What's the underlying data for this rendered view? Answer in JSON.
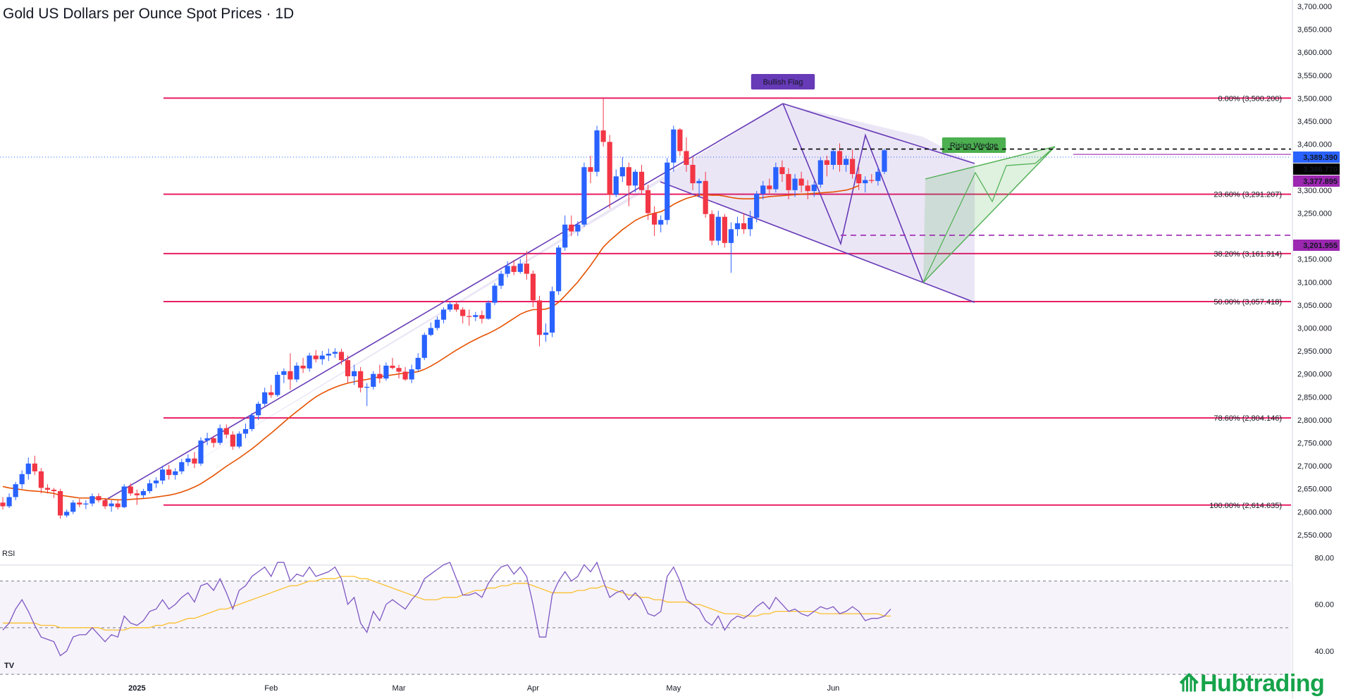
{
  "chart_data": {
    "type": "candlestick",
    "title": "Gold US Dollars per Ounce Spot Prices · 1D",
    "price_axis": {
      "ylim": [
        2510,
        3700
      ],
      "ticks": [
        {
          "v": 3700,
          "label": "3,700.000"
        },
        {
          "v": 3650,
          "label": "3,650.000"
        },
        {
          "v": 3600,
          "label": "3,600.000"
        },
        {
          "v": 3550,
          "label": "3,550.000"
        },
        {
          "v": 3500,
          "label": "3,500.000"
        },
        {
          "v": 3450,
          "label": "3,450.000"
        },
        {
          "v": 3400,
          "label": "3,400.000"
        },
        {
          "v": 3300,
          "label": "3,300.000"
        },
        {
          "v": 3250,
          "label": "3,250.000"
        },
        {
          "v": 3150,
          "label": "3,150.000"
        },
        {
          "v": 3100,
          "label": "3,100.000"
        },
        {
          "v": 3050,
          "label": "3,050.000"
        },
        {
          "v": 3000,
          "label": "3,000.000"
        },
        {
          "v": 2950,
          "label": "2,950.000"
        },
        {
          "v": 2900,
          "label": "2,900.000"
        },
        {
          "v": 2850,
          "label": "2,850.000"
        },
        {
          "v": 2800,
          "label": "2,800.000"
        },
        {
          "v": 2750,
          "label": "2,750.000"
        },
        {
          "v": 2700,
          "label": "2,700.000"
        },
        {
          "v": 2650,
          "label": "2,650.000"
        },
        {
          "v": 2600,
          "label": "2,600.000"
        },
        {
          "v": 2550,
          "label": "2,550.000"
        }
      ],
      "price_labels": [
        {
          "v": 3389.39,
          "label": "3,389.390",
          "color": "#2962ff"
        },
        {
          "v": 3386.77,
          "label": "3,386.770",
          "color": "#000000"
        },
        {
          "v": 3377.895,
          "label": "3,377.895",
          "color": "#9c27b0"
        },
        {
          "v": 3201.955,
          "label": "3,201.955",
          "color": "#9c27b0"
        }
      ]
    },
    "time_axis": [
      {
        "bar": 21,
        "label": "2025"
      },
      {
        "bar": 42,
        "label": "Feb"
      },
      {
        "bar": 62,
        "label": "Mar"
      },
      {
        "bar": 83,
        "label": "Apr"
      },
      {
        "bar": 105,
        "label": "May"
      },
      {
        "bar": 130,
        "label": "Jun"
      }
    ],
    "candles": [
      [
        2620,
        2632,
        2605,
        2612
      ],
      [
        2612,
        2640,
        2608,
        2632
      ],
      [
        2632,
        2665,
        2625,
        2660
      ],
      [
        2660,
        2690,
        2650,
        2682
      ],
      [
        2682,
        2718,
        2670,
        2705
      ],
      [
        2705,
        2722,
        2680,
        2688
      ],
      [
        2688,
        2695,
        2640,
        2652
      ],
      [
        2652,
        2660,
        2640,
        2648
      ],
      [
        2648,
        2652,
        2630,
        2645
      ],
      [
        2645,
        2650,
        2585,
        2592
      ],
      [
        2592,
        2605,
        2588,
        2600
      ],
      [
        2600,
        2625,
        2595,
        2620
      ],
      [
        2620,
        2628,
        2610,
        2616
      ],
      [
        2616,
        2625,
        2606,
        2618
      ],
      [
        2618,
        2640,
        2612,
        2634
      ],
      [
        2634,
        2640,
        2620,
        2625
      ],
      [
        2625,
        2630,
        2606,
        2612
      ],
      [
        2612,
        2625,
        2600,
        2618
      ],
      [
        2618,
        2625,
        2605,
        2610
      ],
      [
        2610,
        2660,
        2608,
        2655
      ],
      [
        2655,
        2662,
        2635,
        2640
      ],
      [
        2640,
        2648,
        2615,
        2636
      ],
      [
        2636,
        2650,
        2630,
        2645
      ],
      [
        2645,
        2670,
        2640,
        2662
      ],
      [
        2662,
        2675,
        2652,
        2668
      ],
      [
        2668,
        2700,
        2660,
        2692
      ],
      [
        2692,
        2702,
        2670,
        2680
      ],
      [
        2680,
        2695,
        2670,
        2688
      ],
      [
        2688,
        2715,
        2682,
        2708
      ],
      [
        2708,
        2725,
        2700,
        2716
      ],
      [
        2716,
        2730,
        2695,
        2705
      ],
      [
        2705,
        2762,
        2700,
        2755
      ],
      [
        2755,
        2772,
        2745,
        2760
      ],
      [
        2760,
        2765,
        2740,
        2750
      ],
      [
        2750,
        2790,
        2745,
        2782
      ],
      [
        2782,
        2790,
        2760,
        2768
      ],
      [
        2768,
        2775,
        2735,
        2742
      ],
      [
        2742,
        2775,
        2738,
        2770
      ],
      [
        2770,
        2792,
        2760,
        2780
      ],
      [
        2780,
        2815,
        2775,
        2810
      ],
      [
        2810,
        2840,
        2800,
        2835
      ],
      [
        2835,
        2870,
        2830,
        2860
      ],
      [
        2860,
        2876,
        2848,
        2854
      ],
      [
        2854,
        2905,
        2850,
        2898
      ],
      [
        2898,
        2912,
        2880,
        2906
      ],
      [
        2906,
        2945,
        2866,
        2888
      ],
      [
        2888,
        2925,
        2882,
        2918
      ],
      [
        2918,
        2935,
        2902,
        2912
      ],
      [
        2912,
        2946,
        2905,
        2940
      ],
      [
        2940,
        2952,
        2925,
        2932
      ],
      [
        2932,
        2950,
        2920,
        2940
      ],
      [
        2940,
        2955,
        2928,
        2944
      ],
      [
        2944,
        2956,
        2935,
        2948
      ],
      [
        2948,
        2955,
        2920,
        2930
      ],
      [
        2930,
        2940,
        2880,
        2895
      ],
      [
        2895,
        2920,
        2876,
        2906
      ],
      [
        2906,
        2915,
        2860,
        2870
      ],
      [
        2870,
        2880,
        2830,
        2872
      ],
      [
        2872,
        2906,
        2866,
        2900
      ],
      [
        2900,
        2920,
        2880,
        2890
      ],
      [
        2890,
        2925,
        2885,
        2918
      ],
      [
        2918,
        2935,
        2910,
        2913
      ],
      [
        2913,
        2920,
        2890,
        2905
      ],
      [
        2905,
        2915,
        2885,
        2888
      ],
      [
        2888,
        2920,
        2880,
        2910
      ],
      [
        2910,
        2945,
        2905,
        2935
      ],
      [
        2935,
        2990,
        2930,
        2985
      ],
      [
        2985,
        3012,
        2982,
        3000
      ],
      [
        3000,
        3025,
        2995,
        3018
      ],
      [
        3018,
        3045,
        3010,
        3040
      ],
      [
        3040,
        3057,
        3035,
        3052
      ],
      [
        3052,
        3058,
        3035,
        3040
      ],
      [
        3040,
        3045,
        3010,
        3026
      ],
      [
        3026,
        3040,
        3005,
        3024
      ],
      [
        3024,
        3035,
        3015,
        3028
      ],
      [
        3028,
        3038,
        3010,
        3020
      ],
      [
        3020,
        3060,
        3018,
        3055
      ],
      [
        3055,
        3098,
        3050,
        3092
      ],
      [
        3092,
        3125,
        3085,
        3118
      ],
      [
        3118,
        3145,
        3110,
        3135
      ],
      [
        3135,
        3148,
        3115,
        3122
      ],
      [
        3122,
        3150,
        3118,
        3140
      ],
      [
        3140,
        3168,
        3105,
        3118
      ],
      [
        3118,
        3125,
        3045,
        3060
      ],
      [
        3060,
        3070,
        2960,
        2985
      ],
      [
        2985,
        3010,
        2970,
        2990
      ],
      [
        2990,
        3090,
        2980,
        3080
      ],
      [
        3080,
        3180,
        3072,
        3175
      ],
      [
        3175,
        3245,
        3168,
        3225
      ],
      [
        3225,
        3245,
        3200,
        3210
      ],
      [
        3210,
        3232,
        3200,
        3225
      ],
      [
        3225,
        3360,
        3220,
        3350
      ],
      [
        3350,
        3375,
        3315,
        3340
      ],
      [
        3340,
        3440,
        3330,
        3430
      ],
      [
        3430,
        3500,
        3395,
        3405
      ],
      [
        3405,
        3420,
        3260,
        3290
      ],
      [
        3290,
        3345,
        3285,
        3330
      ],
      [
        3330,
        3372,
        3318,
        3350
      ],
      [
        3350,
        3360,
        3265,
        3310
      ],
      [
        3310,
        3345,
        3295,
        3340
      ],
      [
        3340,
        3355,
        3290,
        3300
      ],
      [
        3300,
        3312,
        3235,
        3250
      ],
      [
        3250,
        3265,
        3200,
        3225
      ],
      [
        3225,
        3245,
        3208,
        3235
      ],
      [
        3235,
        3370,
        3225,
        3360
      ],
      [
        3360,
        3440,
        3340,
        3432
      ],
      [
        3432,
        3435,
        3375,
        3385
      ],
      [
        3385,
        3415,
        3340,
        3355
      ],
      [
        3355,
        3372,
        3300,
        3315
      ],
      [
        3315,
        3325,
        3285,
        3320
      ],
      [
        3320,
        3340,
        3240,
        3248
      ],
      [
        3248,
        3256,
        3180,
        3190
      ],
      [
        3190,
        3255,
        3180,
        3242
      ],
      [
        3242,
        3248,
        3175,
        3185
      ],
      [
        3185,
        3230,
        3120,
        3215
      ],
      [
        3215,
        3242,
        3200,
        3228
      ],
      [
        3228,
        3250,
        3205,
        3215
      ],
      [
        3215,
        3255,
        3200,
        3240
      ],
      [
        3240,
        3298,
        3230,
        3292
      ],
      [
        3292,
        3320,
        3280,
        3310
      ],
      [
        3310,
        3325,
        3290,
        3302
      ],
      [
        3302,
        3360,
        3295,
        3350
      ],
      [
        3350,
        3365,
        3318,
        3335
      ],
      [
        3335,
        3348,
        3280,
        3300
      ],
      [
        3300,
        3335,
        3285,
        3325
      ],
      [
        3325,
        3340,
        3295,
        3310
      ],
      [
        3310,
        3322,
        3280,
        3298
      ],
      [
        3298,
        3320,
        3285,
        3312
      ],
      [
        3312,
        3372,
        3305,
        3365
      ],
      [
        3365,
        3375,
        3330,
        3355
      ],
      [
        3355,
        3390,
        3345,
        3385
      ],
      [
        3385,
        3402,
        3340,
        3355
      ],
      [
        3355,
        3375,
        3340,
        3368
      ],
      [
        3368,
        3388,
        3325,
        3335
      ],
      [
        3335,
        3350,
        3300,
        3315
      ],
      [
        3315,
        3330,
        3295,
        3322
      ],
      [
        3322,
        3335,
        3315,
        3320
      ],
      [
        3320,
        3350,
        3310,
        3340
      ],
      [
        3340,
        3390,
        3335,
        3386.77
      ]
    ],
    "moving_average": [
      2655,
      2652,
      2650,
      2648,
      2646,
      2645,
      2644,
      2642,
      2640,
      2636,
      2634,
      2632,
      2630,
      2630,
      2630,
      2629,
      2628,
      2627,
      2626,
      2626,
      2627,
      2628,
      2629,
      2630,
      2632,
      2634,
      2636,
      2639,
      2643,
      2648,
      2654,
      2661,
      2670,
      2679,
      2689,
      2699,
      2708,
      2717,
      2727,
      2737,
      2748,
      2760,
      2771,
      2783,
      2795,
      2807,
      2818,
      2829,
      2840,
      2850,
      2858,
      2865,
      2871,
      2876,
      2880,
      2883,
      2886,
      2888,
      2891,
      2894,
      2896,
      2898,
      2900,
      2902,
      2903,
      2905,
      2910,
      2917,
      2925,
      2934,
      2943,
      2952,
      2960,
      2968,
      2975,
      2982,
      2988,
      2995,
      3003,
      3012,
      3021,
      3030,
      3036,
      3040,
      3040,
      3041,
      3046,
      3056,
      3070,
      3085,
      3100,
      3118,
      3136,
      3156,
      3176,
      3190,
      3202,
      3214,
      3224,
      3234,
      3241,
      3246,
      3250,
      3253,
      3260,
      3269,
      3276,
      3282,
      3286,
      3289,
      3290,
      3289,
      3289,
      3287,
      3284,
      3282,
      3281,
      3281,
      3282,
      3284,
      3286,
      3287,
      3288,
      3289,
      3290,
      3291,
      3292,
      3293,
      3294,
      3295,
      3296,
      3298,
      3300,
      3304,
      3310
    ],
    "rsi": {
      "label": "RSI",
      "ylim": [
        30,
        85
      ],
      "ticks": [
        {
          "v": 80,
          "label": "80.00"
        },
        {
          "v": 60,
          "label": "60.00"
        },
        {
          "v": 40,
          "label": "40.00"
        }
      ],
      "bands": [
        70,
        50,
        30
      ],
      "values": [
        49,
        52,
        58,
        62,
        57,
        51,
        46,
        45,
        44,
        38,
        40,
        46,
        47,
        47,
        50,
        47,
        44,
        47,
        46,
        55,
        52,
        51,
        53,
        57,
        58,
        62,
        58,
        60,
        63,
        65,
        61,
        68,
        69,
        66,
        71,
        65,
        58,
        66,
        68,
        72,
        74,
        76,
        72,
        78,
        78,
        70,
        73,
        72,
        76,
        72,
        73,
        74,
        76,
        71,
        60,
        63,
        52,
        48,
        57,
        53,
        60,
        62,
        60,
        58,
        62,
        65,
        71,
        73,
        75,
        77,
        78,
        71,
        64,
        64,
        65,
        63,
        69,
        73,
        76,
        77,
        73,
        76,
        72,
        60,
        46,
        46,
        64,
        70,
        74,
        70,
        72,
        77,
        74,
        78,
        70,
        63,
        65,
        66,
        62,
        65,
        62,
        56,
        55,
        57,
        72,
        76,
        70,
        62,
        60,
        58,
        53,
        51,
        55,
        49,
        53,
        55,
        54,
        56,
        59,
        61,
        58,
        63,
        60,
        57,
        58,
        56,
        55,
        57,
        59,
        58,
        59,
        56,
        57,
        59,
        57,
        53,
        54,
        54,
        55,
        58
      ],
      "signal": [
        52,
        52,
        52,
        52,
        52,
        52,
        51,
        51,
        51,
        50,
        50,
        50,
        50,
        50,
        50,
        50,
        49,
        49,
        49,
        49,
        50,
        50,
        50,
        50,
        51,
        51,
        52,
        52,
        53,
        54,
        54,
        55,
        56,
        57,
        58,
        58,
        59,
        60,
        61,
        62,
        63,
        64,
        65,
        66,
        67,
        68,
        68,
        69,
        70,
        70,
        71,
        71,
        71,
        72,
        72,
        72,
        71,
        71,
        70,
        69,
        68,
        67,
        66,
        65,
        64,
        63,
        62,
        62,
        62,
        63,
        63,
        63,
        64,
        65,
        66,
        66,
        67,
        67,
        68,
        68,
        69,
        69,
        69,
        68,
        67,
        66,
        65,
        65,
        65,
        65,
        66,
        66,
        67,
        67,
        68,
        67,
        66,
        65,
        64,
        64,
        63,
        63,
        62,
        62,
        61,
        61,
        61,
        61,
        60,
        60,
        59,
        58,
        57,
        56,
        56,
        56,
        55,
        55,
        55,
        56,
        56,
        57,
        57,
        57,
        57,
        57,
        57,
        57,
        56,
        56,
        56,
        56,
        56,
        56,
        56,
        56,
        56,
        56,
        55,
        55
      ]
    },
    "fibonacci": [
      {
        "v": 3500.2,
        "label": "0.00% (3,500.200)"
      },
      {
        "v": 3291.207,
        "label": "23.60% (3,291.207)"
      },
      {
        "v": 3161.914,
        "label": "38.20% (3,161.914)"
      },
      {
        "v": 3057.418,
        "label": "50.00% (3,057.418)"
      },
      {
        "v": 2804.146,
        "label": "78.60% (2,804.146)"
      },
      {
        "v": 2614.635,
        "label": "100.00% (2,614.635)"
      }
    ],
    "annotations": [
      {
        "text": "Bullish Flag",
        "color": "#673ab7"
      },
      {
        "text": "Rising Wedge",
        "color": "#4caf50"
      }
    ],
    "colors": {
      "up": "#2962ff",
      "down": "#f23645",
      "ma": "#e65100",
      "fib": "#e91e63",
      "flag": "#673ab7",
      "wedge": "#4caf50",
      "rsi": "#7e57c2",
      "rsi_signal": "#fbc02d"
    }
  },
  "brand": {
    "text": "Hubtrading"
  },
  "tv_mark": "TV"
}
